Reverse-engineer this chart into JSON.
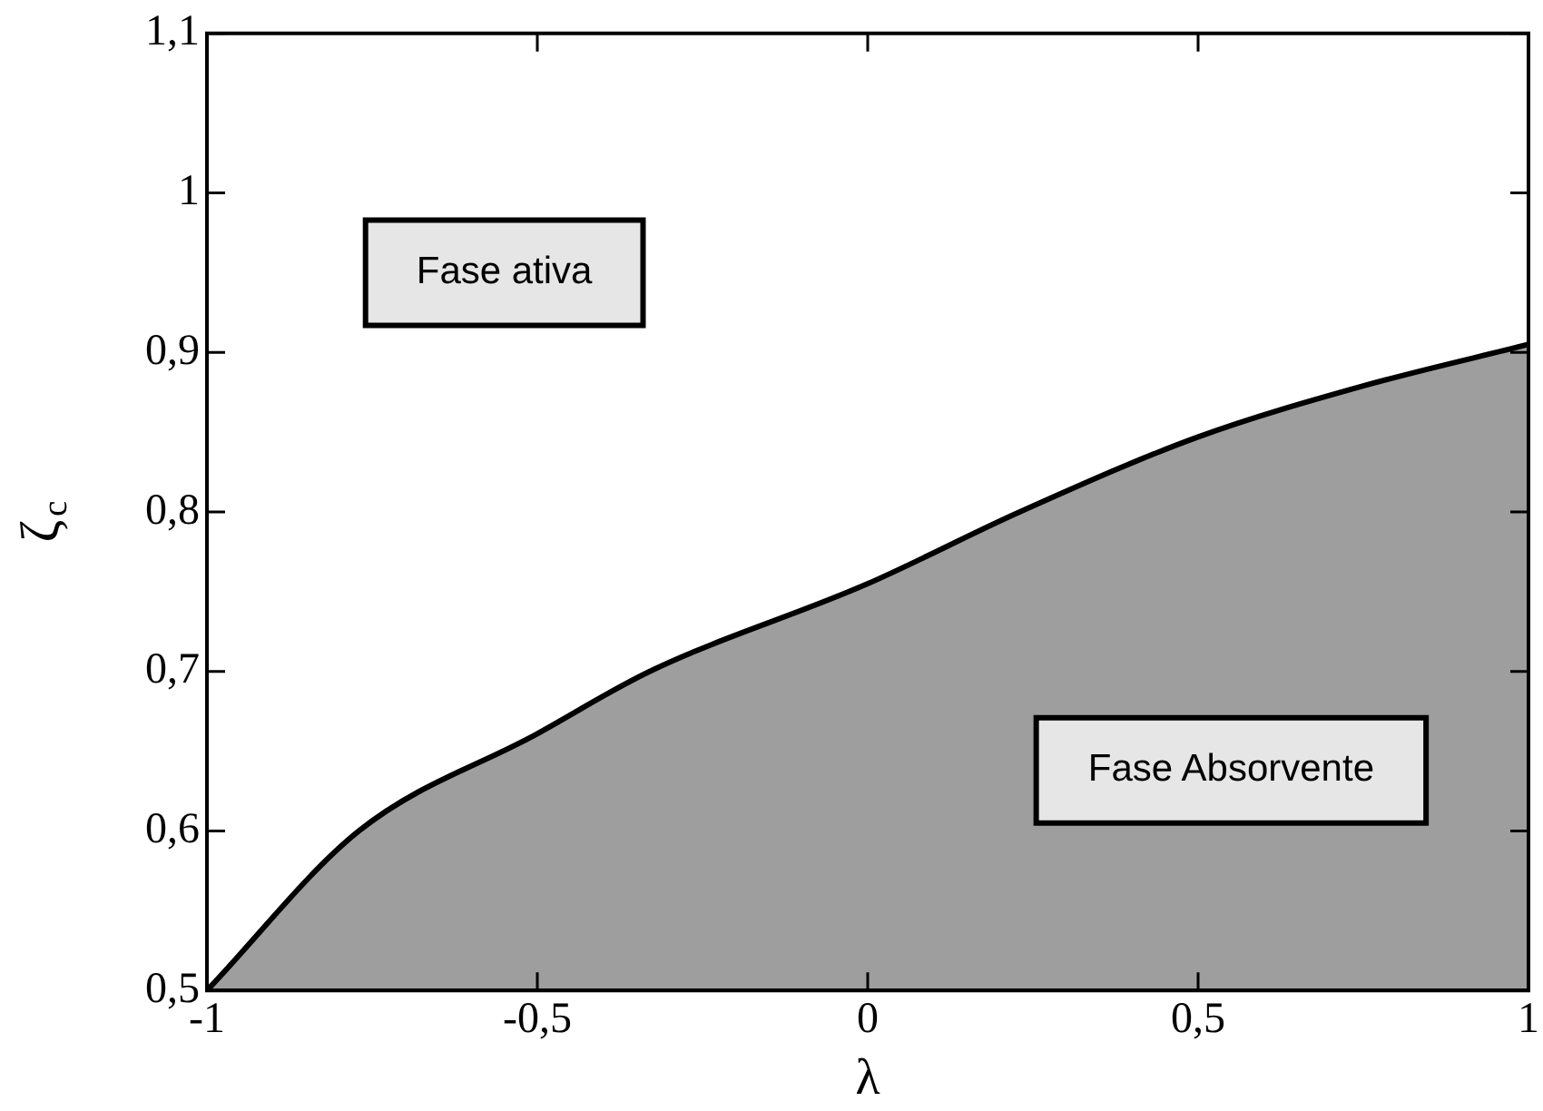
{
  "chart_data": {
    "type": "area",
    "xlabel": "λ",
    "ylabel": "ζ$_{c}$",
    "x": [
      -1,
      -0.77,
      -0.5,
      -0.33,
      0,
      0.23,
      0.5,
      0.75,
      1
    ],
    "series": [
      {
        "color": "#000000",
        "values": [
          0.5,
          0.6,
          0.661,
          0.7,
          0.755,
          0.8,
          0.847,
          0.879,
          0.905
        ]
      }
    ],
    "xlim": [
      -1,
      1
    ],
    "ylim": [
      0.5,
      1.1
    ],
    "xticks": [
      -1,
      {
        "value": -0.5,
        "label": "-0,5"
      },
      0,
      {
        "value": 0.5,
        "label": "0,5"
      },
      1
    ],
    "yticks": [
      {
        "value": 0.5,
        "label": "0,5"
      },
      {
        "value": 0.6,
        "label": "0,6"
      },
      {
        "value": 0.7,
        "label": "0,7"
      },
      {
        "value": 0.8,
        "label": "0,8"
      },
      {
        "value": 0.9,
        "label": "0,9"
      },
      1,
      {
        "value": 1.1,
        "label": "1,1"
      }
    ],
    "annotations": [
      "Fase ativa",
      "Fase Absorvente"
    ],
    "grid": false,
    "legend": false,
    "marker": "none",
    "line_style": "solid"
  }
}
